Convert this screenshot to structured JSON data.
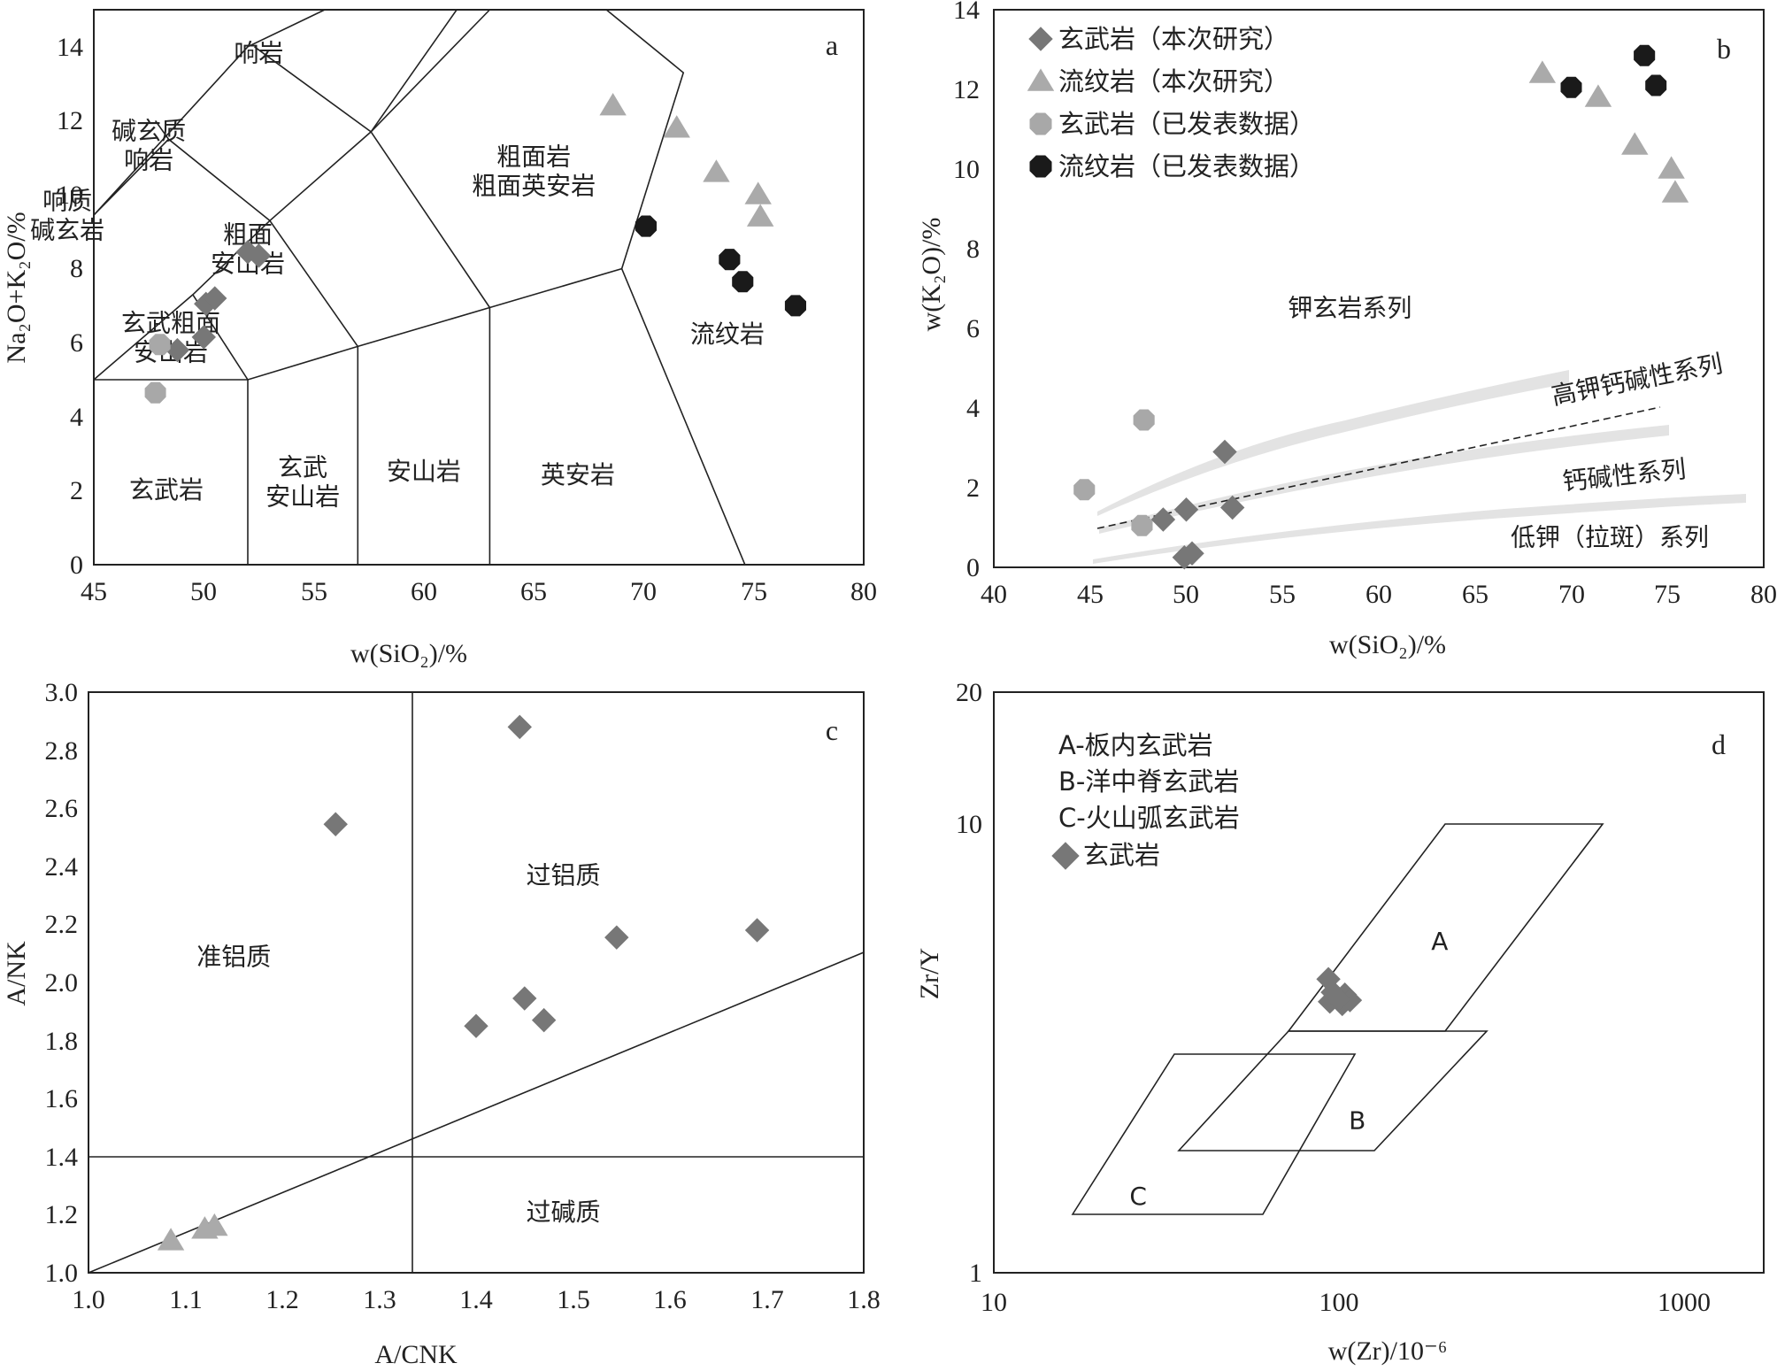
{
  "chart_data": [
    {
      "id": "a",
      "type": "scatter",
      "panel_label": "a",
      "xlabel": "w(SiO₂)/%",
      "ylabel": "Na₂O+K₂O/%",
      "xlim": [
        45,
        80
      ],
      "ylim": [
        0,
        15
      ],
      "x_ticks": [
        "45",
        "50",
        "55",
        "60",
        "65",
        "70",
        "75",
        "80"
      ],
      "y_ticks": [
        "0",
        "2",
        "4",
        "6",
        "8",
        "10",
        "12",
        "14"
      ],
      "region_labels": [
        {
          "lines": [
            "响岩"
          ],
          "x": 52.5,
          "y": 13.6
        },
        {
          "lines": [
            "碱玄质",
            "响岩"
          ],
          "x": 47.5,
          "y": 11.5
        },
        {
          "lines": [
            "响质",
            "碱玄岩"
          ],
          "x": 43.8,
          "y": 9.6
        },
        {
          "lines": [
            "粗面岩",
            "粗面英安岩"
          ],
          "x": 65.0,
          "y": 10.8
        },
        {
          "lines": [
            "粗面",
            "安山岩"
          ],
          "x": 52.0,
          "y": 8.7
        },
        {
          "lines": [
            "玄武粗面",
            "安山岩"
          ],
          "x": 48.5,
          "y": 6.3
        },
        {
          "lines": [
            "流纹岩"
          ],
          "x": 73.8,
          "y": 6.0
        },
        {
          "lines": [
            "玄武岩"
          ],
          "x": 48.3,
          "y": 1.8
        },
        {
          "lines": [
            "玄武",
            "安山岩"
          ],
          "x": 54.5,
          "y": 2.4
        },
        {
          "lines": [
            "安山岩"
          ],
          "x": 60.0,
          "y": 2.3
        },
        {
          "lines": [
            "英安岩"
          ],
          "x": 67.0,
          "y": 2.2
        }
      ],
      "series": [
        {
          "name": "玄武岩（本次研究）",
          "marker": "diamond",
          "color": "#777777",
          "points": [
            [
              48.8,
              5.8
            ],
            [
              50.0,
              6.15
            ],
            [
              50.1,
              7.05
            ],
            [
              50.5,
              7.2
            ],
            [
              52.0,
              8.45
            ],
            [
              52.5,
              8.35
            ]
          ]
        },
        {
          "name": "流纹岩（本次研究）",
          "marker": "triangle",
          "color": "#aaaaaa",
          "points": [
            [
              68.6,
              12.4
            ],
            [
              71.5,
              11.8
            ],
            [
              73.3,
              10.6
            ],
            [
              75.2,
              10.0
            ],
            [
              75.3,
              9.4
            ]
          ]
        },
        {
          "name": "玄武岩（已发表数据）",
          "marker": "circle",
          "color": "#a8a8a8",
          "points": [
            [
              48.0,
              5.95
            ],
            [
              47.8,
              4.65
            ]
          ]
        },
        {
          "name": "流纹岩（已发表数据）",
          "marker": "circle",
          "color": "#1a1a1a",
          "points": [
            [
              70.1,
              9.15
            ],
            [
              73.9,
              8.25
            ],
            [
              74.5,
              7.65
            ],
            [
              76.9,
              7.0
            ]
          ]
        }
      ]
    },
    {
      "id": "b",
      "type": "scatter",
      "panel_label": "b",
      "xlabel": "w(SiO₂)/%",
      "ylabel": "w(K₂O)/%",
      "xlim": [
        40,
        80
      ],
      "ylim": [
        0,
        14
      ],
      "x_ticks": [
        "40",
        "45",
        "50",
        "55",
        "60",
        "65",
        "70",
        "75",
        "80"
      ],
      "y_ticks": [
        "0",
        "2",
        "4",
        "6",
        "8",
        "10",
        "12",
        "14"
      ],
      "legend": [
        {
          "label": "玄武岩（本次研究）",
          "marker": "diamond",
          "color": "#777777"
        },
        {
          "label": "流纹岩（本次研究）",
          "marker": "triangle",
          "color": "#aaaaaa"
        },
        {
          "label": "玄武岩（已发表数据）",
          "marker": "circle",
          "color": "#a8a8a8"
        },
        {
          "label": "流纹岩（已发表数据）",
          "marker": "circle",
          "color": "#1a1a1a"
        }
      ],
      "region_labels": [
        {
          "text": "钾玄岩系列",
          "x": 58.5,
          "y": 6.3,
          "angle": 0
        },
        {
          "text": "高钾钙碱性系列",
          "x": 73.5,
          "y": 4.5,
          "angle": -11
        },
        {
          "text": "钙碱性系列",
          "x": 72.8,
          "y": 2.1,
          "angle": -6
        },
        {
          "text": "低钾（拉斑）系列",
          "x": 72.0,
          "y": 0.55,
          "angle": 0
        }
      ],
      "series": [
        {
          "name": "玄武岩（本次研究）",
          "marker": "diamond",
          "color": "#777777",
          "points": [
            [
              52.0,
              2.9
            ],
            [
              52.4,
              1.5
            ],
            [
              50.0,
              1.45
            ],
            [
              48.8,
              1.2
            ],
            [
              50.3,
              0.35
            ],
            [
              49.9,
              0.25
            ]
          ]
        },
        {
          "name": "流纹岩（本次研究）",
          "marker": "triangle",
          "color": "#aaaaaa",
          "points": [
            [
              68.5,
              12.4
            ],
            [
              71.4,
              11.8
            ],
            [
              73.3,
              10.6
            ],
            [
              75.2,
              10.0
            ],
            [
              75.4,
              9.4
            ]
          ]
        },
        {
          "name": "玄武岩（已发表数据）",
          "marker": "circle",
          "color": "#a8a8a8",
          "points": [
            [
              44.7,
              1.95
            ],
            [
              47.8,
              3.7
            ],
            [
              47.7,
              1.05
            ]
          ]
        },
        {
          "name": "流纹岩（已发表数据）",
          "marker": "circle",
          "color": "#1a1a1a",
          "points": [
            [
              73.8,
              12.85
            ],
            [
              70.0,
              12.05
            ],
            [
              74.4,
              12.1
            ]
          ]
        }
      ]
    },
    {
      "id": "c",
      "type": "scatter",
      "panel_label": "c",
      "xlabel": "A/CNK",
      "ylabel": "A/NK",
      "xlim": [
        1.0,
        1.8
      ],
      "ylim": [
        1.0,
        3.0
      ],
      "x_ticks": [
        "1.0",
        "1.1",
        "1.2",
        "1.3",
        "1.4",
        "1.5",
        "1.6",
        "1.7",
        "1.8"
      ],
      "y_ticks": [
        "1.0",
        "1.2",
        "1.4",
        "1.6",
        "1.8",
        "2.0",
        "2.2",
        "2.4",
        "2.6",
        "2.8",
        "3.0"
      ],
      "region_labels": [
        {
          "text": "过铝质",
          "x": 1.49,
          "y": 2.34
        },
        {
          "text": "准铝质",
          "x": 1.15,
          "y": 2.06
        },
        {
          "text": "过碱质",
          "x": 1.49,
          "y": 1.18
        }
      ],
      "series": [
        {
          "name": "玄武岩",
          "marker": "diamond",
          "color": "#777777",
          "points": [
            [
              1.445,
              2.88
            ],
            [
              1.255,
              2.545
            ],
            [
              1.545,
              2.155
            ],
            [
              1.69,
              2.18
            ],
            [
              1.45,
              1.945
            ],
            [
              1.47,
              1.87
            ],
            [
              1.4,
              1.85
            ]
          ]
        },
        {
          "name": "流纹岩",
          "marker": "triangle",
          "color": "#aaaaaa",
          "points": [
            [
              1.085,
              1.11
            ],
            [
              1.12,
              1.15
            ],
            [
              1.13,
              1.16
            ]
          ]
        }
      ]
    },
    {
      "id": "d",
      "type": "scatter",
      "panel_label": "d",
      "xlabel": "w(Zr)/10⁻⁶",
      "ylabel": "Zr/Y",
      "xscale": "log",
      "yscale": "log",
      "xlim": [
        10,
        2000
      ],
      "ylim": [
        1,
        20
      ],
      "x_ticks": [
        "10",
        "100",
        "1000"
      ],
      "y_ticks": [
        "1",
        "10",
        "20"
      ],
      "legend": [
        {
          "label": "A-板内玄武岩"
        },
        {
          "label": "B-洋中脊玄武岩"
        },
        {
          "label": "C-火山弧玄武岩"
        },
        {
          "label": "玄武岩",
          "marker": "diamond",
          "color": "#777777"
        }
      ],
      "region_labels": [
        {
          "text": "A",
          "x": 215,
          "y": 5.3
        },
        {
          "text": "B",
          "x": 122,
          "y": 2.1
        },
        {
          "text": "C",
          "x": 27,
          "y": 1.42
        }
      ],
      "series": [
        {
          "name": "玄武岩",
          "marker": "diamond",
          "color": "#777777",
          "points": [
            [
              100,
              4.55
            ],
            [
              101,
              4.05
            ],
            [
              106,
              4.15
            ],
            [
              110,
              4.0
            ],
            [
              112,
              4.2
            ],
            [
              116,
              4.08
            ],
            [
              103,
              4.25
            ],
            [
              108,
              4.1
            ]
          ]
        }
      ]
    }
  ]
}
